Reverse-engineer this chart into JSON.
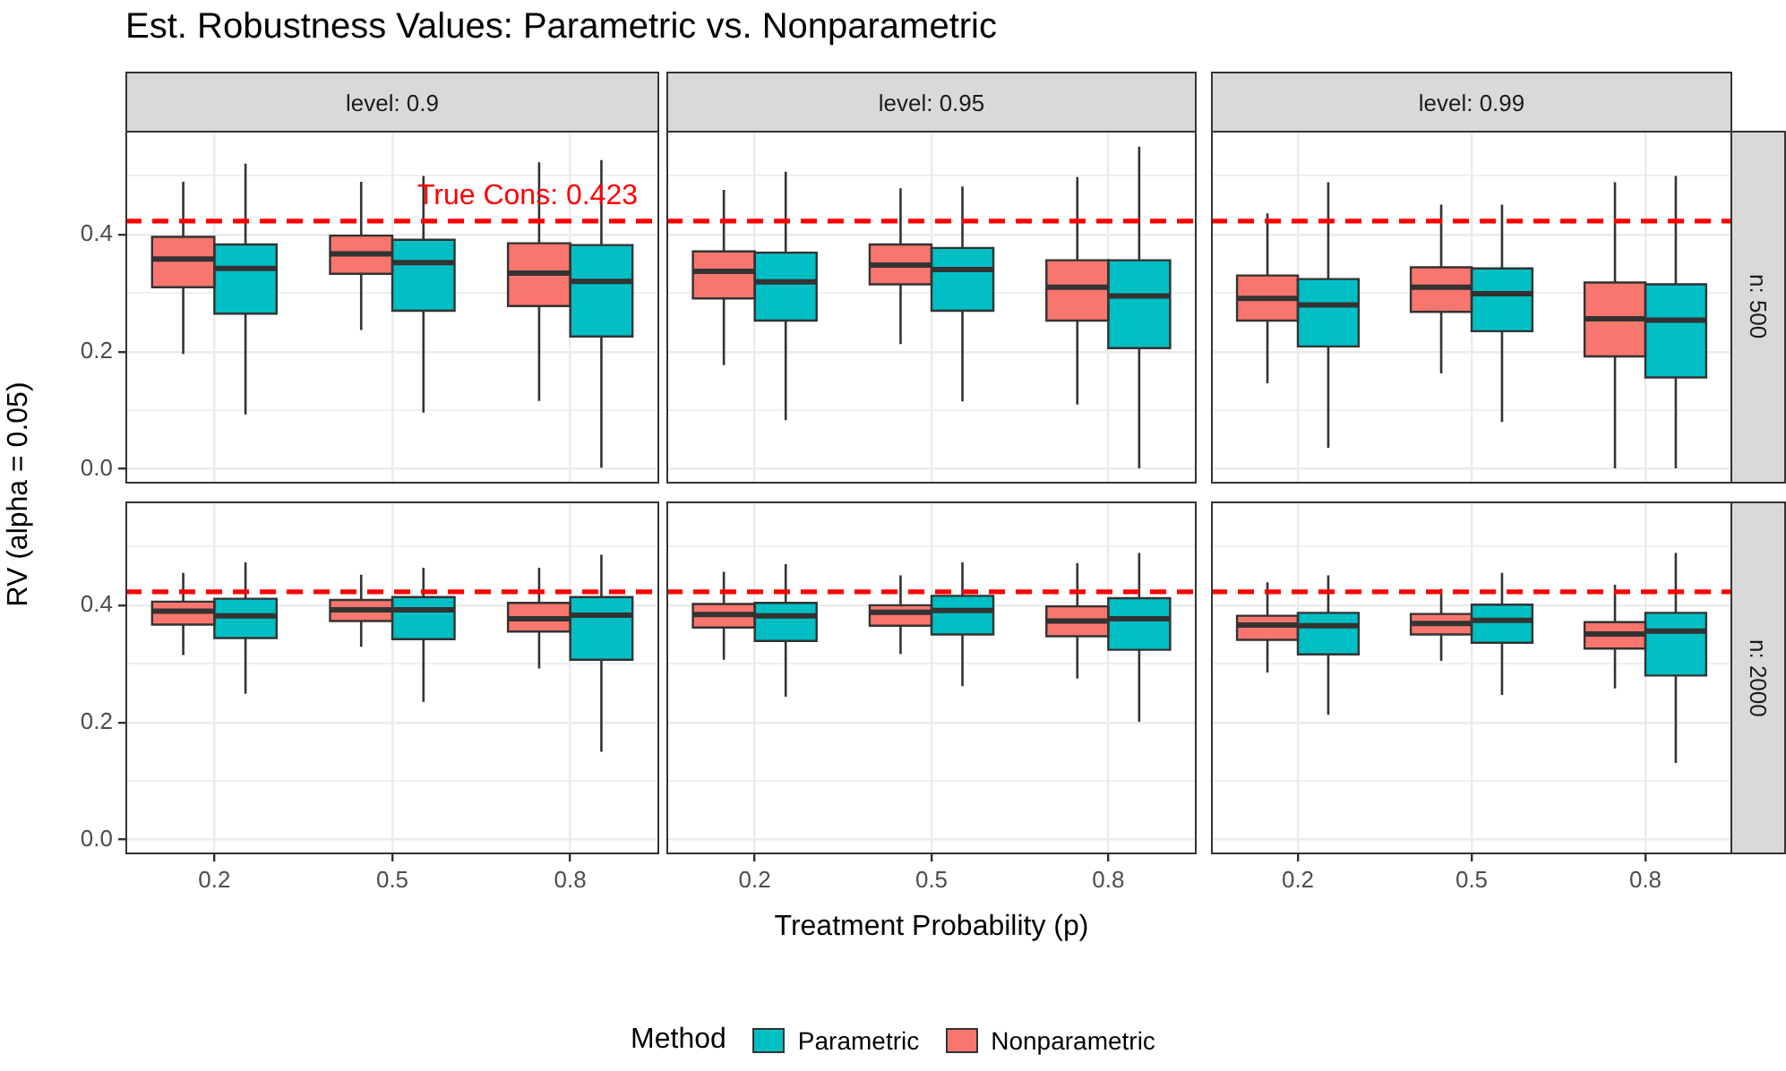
{
  "chart_data": [
    {
      "type": "box",
      "title": "Est. Robustness Values: Parametric vs. Nonparametric",
      "subtitle": "level: 0.9",
      "ylabel": "RV (alpha = 0.05)",
      "legend_title": "Method",
      "legend": "bottom",
      "categories": [
        "0.2",
        "0.5",
        "0.8"
      ],
      "ylim": [
        -0.025,
        0.577
      ],
      "yticks": [
        {
          "value": 0,
          "label": "0.0"
        },
        {
          "value": 0.1,
          "label": null
        },
        0.2,
        {
          "value": 0.3,
          "label": null
        },
        0.4,
        {
          "value": 0.5,
          "label": null
        }
      ],
      "grid": true,
      "tick_labels": "y",
      "ref_lines": [
        {
          "axis": "y",
          "value": 0.423,
          "label": "True Cons: 0.423",
          "color": "#ff0000",
          "line_style": "dashed"
        }
      ],
      "series": [
        {
          "name": "Parametric",
          "color": "#00bfc4",
          "boxes": [
            {
              "low": 0.093,
              "q1": 0.265,
              "median": 0.342,
              "q3": 0.383,
              "high": 0.521
            },
            {
              "low": 0.096,
              "q1": 0.27,
              "median": 0.352,
              "q3": 0.391,
              "high": 0.5
            },
            {
              "low": 0.002,
              "q1": 0.226,
              "median": 0.32,
              "q3": 0.382,
              "high": 0.527
            }
          ]
        },
        {
          "name": "Nonparametric",
          "color": "#f8766d",
          "boxes": [
            {
              "low": 0.196,
              "q1": 0.31,
              "median": 0.358,
              "q3": 0.396,
              "high": 0.49
            },
            {
              "low": 0.237,
              "q1": 0.333,
              "median": 0.367,
              "q3": 0.398,
              "high": 0.49
            },
            {
              "low": 0.116,
              "q1": 0.278,
              "median": 0.334,
              "q3": 0.385,
              "high": 0.523
            }
          ]
        }
      ]
    },
    {
      "type": "box",
      "subtitle": "level: 0.95",
      "categories": [
        "0.2",
        "0.5",
        "0.8"
      ],
      "ylim": [
        -0.025,
        0.577
      ],
      "yticks": [
        0,
        {
          "value": 0.1,
          "label": null
        },
        0.2,
        {
          "value": 0.3,
          "label": null
        },
        0.4,
        {
          "value": 0.5,
          "label": null
        }
      ],
      "grid": true,
      "tick_labels": false,
      "ref_lines": [
        {
          "axis": "y",
          "value": 0.423,
          "color": "#ff0000",
          "line_style": "dashed"
        }
      ],
      "series": [
        {
          "color": "#00bfc4",
          "boxes": [
            {
              "low": 0.083,
              "q1": 0.253,
              "median": 0.319,
              "q3": 0.369,
              "high": 0.507
            },
            {
              "low": 0.115,
              "q1": 0.27,
              "median": 0.34,
              "q3": 0.377,
              "high": 0.482
            },
            {
              "low": 0.001,
              "q1": 0.206,
              "median": 0.295,
              "q3": 0.356,
              "high": 0.55
            }
          ]
        },
        {
          "color": "#f8766d",
          "boxes": [
            {
              "low": 0.177,
              "q1": 0.291,
              "median": 0.337,
              "q3": 0.371,
              "high": 0.476
            },
            {
              "low": 0.213,
              "q1": 0.315,
              "median": 0.348,
              "q3": 0.383,
              "high": 0.479
            },
            {
              "low": 0.11,
              "q1": 0.253,
              "median": 0.31,
              "q3": 0.356,
              "high": 0.498
            }
          ]
        }
      ]
    },
    {
      "type": "box",
      "subtitle": "level: 0.99",
      "annotations": [
        "n: 500"
      ],
      "categories": [
        "0.2",
        "0.5",
        "0.8"
      ],
      "ylim": [
        -0.025,
        0.577
      ],
      "yticks": [
        0,
        {
          "value": 0.1,
          "label": null
        },
        0.2,
        {
          "value": 0.3,
          "label": null
        },
        0.4,
        {
          "value": 0.5,
          "label": null
        }
      ],
      "grid": true,
      "tick_labels": false,
      "ref_lines": [
        {
          "axis": "y",
          "value": 0.423,
          "color": "#ff0000",
          "line_style": "dashed"
        }
      ],
      "series": [
        {
          "color": "#00bfc4",
          "boxes": [
            {
              "low": 0.036,
              "q1": 0.209,
              "median": 0.28,
              "q3": 0.324,
              "high": 0.489
            },
            {
              "low": 0.08,
              "q1": 0.235,
              "median": 0.299,
              "q3": 0.342,
              "high": 0.451
            },
            {
              "low": 0.001,
              "q1": 0.156,
              "median": 0.254,
              "q3": 0.315,
              "high": 0.5
            }
          ]
        },
        {
          "color": "#f8766d",
          "boxes": [
            {
              "low": 0.146,
              "q1": 0.253,
              "median": 0.291,
              "q3": 0.33,
              "high": 0.436
            },
            {
              "low": 0.163,
              "q1": 0.268,
              "median": 0.31,
              "q3": 0.344,
              "high": 0.451
            },
            {
              "low": 0.001,
              "q1": 0.192,
              "median": 0.256,
              "q3": 0.318,
              "high": 0.489
            }
          ]
        }
      ]
    },
    {
      "type": "box",
      "categories": [
        "0.2",
        "0.5",
        "0.8"
      ],
      "ylim": [
        -0.025,
        0.577
      ],
      "yticks": [
        {
          "value": 0,
          "label": "0.0"
        },
        {
          "value": 0.1,
          "label": null
        },
        0.2,
        {
          "value": 0.3,
          "label": null
        },
        0.4,
        {
          "value": 0.5,
          "label": null
        }
      ],
      "grid": true,
      "ref_lines": [
        {
          "axis": "y",
          "value": 0.423,
          "color": "#ff0000",
          "line_style": "dashed"
        }
      ],
      "series": [
        {
          "color": "#00bfc4",
          "boxes": [
            {
              "low": 0.249,
              "q1": 0.344,
              "median": 0.382,
              "q3": 0.411,
              "high": 0.473
            },
            {
              "low": 0.235,
              "q1": 0.342,
              "median": 0.392,
              "q3": 0.414,
              "high": 0.464
            },
            {
              "low": 0.15,
              "q1": 0.307,
              "median": 0.383,
              "q3": 0.414,
              "high": 0.486
            }
          ]
        },
        {
          "color": "#f8766d",
          "boxes": [
            {
              "low": 0.315,
              "q1": 0.367,
              "median": 0.39,
              "q3": 0.406,
              "high": 0.455
            },
            {
              "low": 0.329,
              "q1": 0.373,
              "median": 0.392,
              "q3": 0.409,
              "high": 0.452
            },
            {
              "low": 0.292,
              "q1": 0.355,
              "median": 0.377,
              "q3": 0.404,
              "high": 0.464
            }
          ]
        }
      ]
    },
    {
      "type": "box",
      "xlabel": "Treatment Probability (p)",
      "categories": [
        "0.2",
        "0.5",
        "0.8"
      ],
      "ylim": [
        -0.025,
        0.577
      ],
      "yticks": [
        0,
        {
          "value": 0.1,
          "label": null
        },
        0.2,
        {
          "value": 0.3,
          "label": null
        },
        0.4,
        {
          "value": 0.5,
          "label": null
        }
      ],
      "grid": true,
      "tick_labels": "x",
      "ref_lines": [
        {
          "axis": "y",
          "value": 0.423,
          "color": "#ff0000",
          "line_style": "dashed"
        }
      ],
      "series": [
        {
          "color": "#00bfc4",
          "boxes": [
            {
              "low": 0.244,
              "q1": 0.339,
              "median": 0.382,
              "q3": 0.404,
              "high": 0.47
            },
            {
              "low": 0.262,
              "q1": 0.35,
              "median": 0.391,
              "q3": 0.416,
              "high": 0.473
            },
            {
              "low": 0.201,
              "q1": 0.324,
              "median": 0.377,
              "q3": 0.412,
              "high": 0.489
            }
          ]
        },
        {
          "color": "#f8766d",
          "boxes": [
            {
              "low": 0.307,
              "q1": 0.362,
              "median": 0.384,
              "q3": 0.402,
              "high": 0.457
            },
            {
              "low": 0.317,
              "q1": 0.365,
              "median": 0.388,
              "q3": 0.4,
              "high": 0.451
            },
            {
              "low": 0.275,
              "q1": 0.347,
              "median": 0.373,
              "q3": 0.398,
              "high": 0.472
            }
          ]
        }
      ]
    },
    {
      "type": "box",
      "annotations": [
        "n: 2000"
      ],
      "categories": [
        "0.2",
        "0.5",
        "0.8"
      ],
      "ylim": [
        -0.025,
        0.577
      ],
      "yticks": [
        0,
        {
          "value": 0.1,
          "label": null
        },
        0.2,
        {
          "value": 0.3,
          "label": null
        },
        0.4,
        {
          "value": 0.5,
          "label": null
        }
      ],
      "grid": true,
      "tick_labels": "x",
      "ref_lines": [
        {
          "axis": "y",
          "value": 0.423,
          "color": "#ff0000",
          "line_style": "dashed"
        }
      ],
      "series": [
        {
          "color": "#00bfc4",
          "boxes": [
            {
              "low": 0.213,
              "q1": 0.316,
              "median": 0.365,
              "q3": 0.387,
              "high": 0.451
            },
            {
              "low": 0.247,
              "q1": 0.336,
              "median": 0.374,
              "q3": 0.401,
              "high": 0.455
            },
            {
              "low": 0.131,
              "q1": 0.28,
              "median": 0.356,
              "q3": 0.387,
              "high": 0.489
            }
          ]
        },
        {
          "color": "#f8766d",
          "boxes": [
            {
              "low": 0.285,
              "q1": 0.341,
              "median": 0.366,
              "q3": 0.382,
              "high": 0.439
            },
            {
              "low": 0.305,
              "q1": 0.35,
              "median": 0.369,
              "q3": 0.385,
              "high": 0.428
            },
            {
              "low": 0.258,
              "q1": 0.326,
              "median": 0.351,
              "q3": 0.371,
              "high": 0.435
            }
          ]
        }
      ]
    }
  ]
}
